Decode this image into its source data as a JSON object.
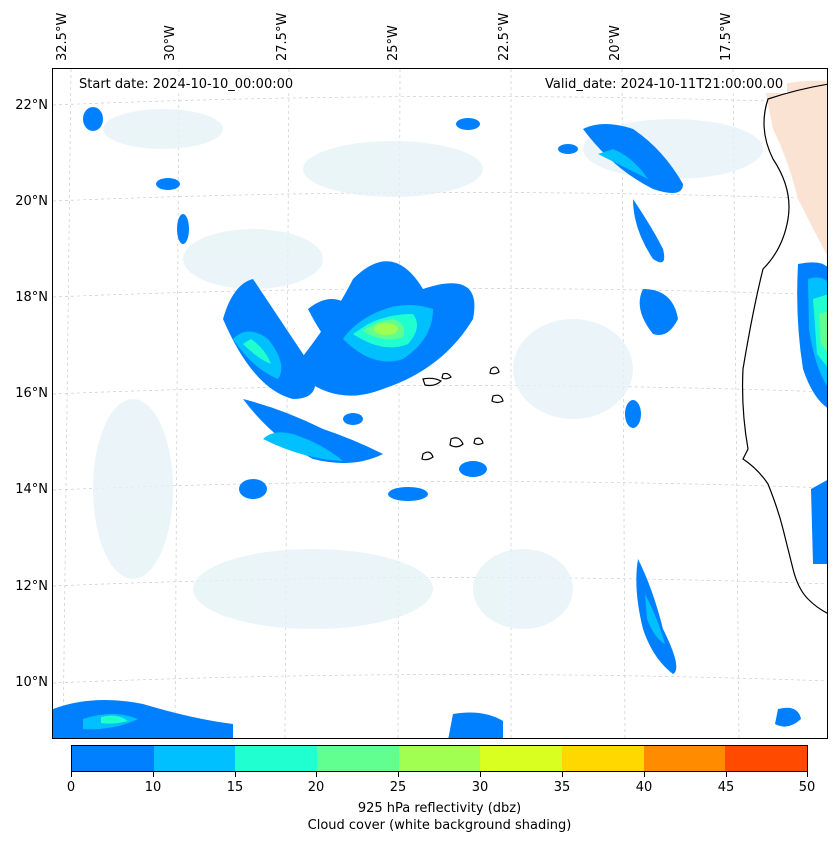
{
  "header": {
    "start_date": "Start date: 2024-10-10_00:00:00",
    "valid_date": "Valid_date: 2024-10-11T21:00:00.00"
  },
  "map": {
    "lon_labels": [
      "32.5°W",
      "30°W",
      "27.5°W",
      "25°W",
      "22.5°W",
      "20°W",
      "17.5°W"
    ],
    "lat_labels": [
      "22°N",
      "20°N",
      "18°N",
      "16°N",
      "14°N",
      "12°N",
      "10°N"
    ],
    "gridlines": "dashed light gray",
    "coastline_color": "#000000",
    "land_shading_color": "#fbe3d4"
  },
  "colorbar": {
    "ticks": [
      "0",
      "10",
      "15",
      "20",
      "25",
      "30",
      "35",
      "40",
      "45",
      "50"
    ],
    "colors": [
      "#0080ff",
      "#00c0ff",
      "#20ffd0",
      "#60ff90",
      "#a0ff50",
      "#d8ff20",
      "#ffd800",
      "#ff8c00",
      "#ff4a00"
    ],
    "label_line1": "925 hPa reflectivity (dbz)",
    "label_line2": "Cloud cover (white background shading)"
  }
}
